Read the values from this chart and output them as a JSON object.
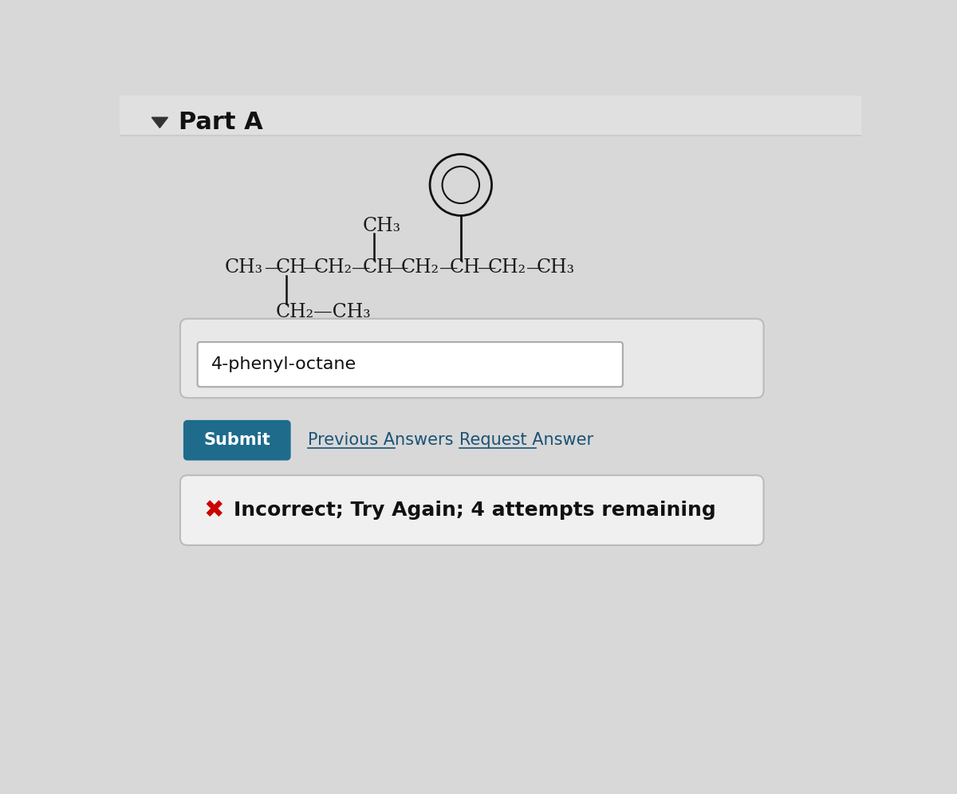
{
  "bg_color": "#d8d8d8",
  "part_a_text": "Part A",
  "part_a_fontsize": 22,
  "triangle_color": "#333333",
  "structure_color": "#1a1a1a",
  "structure_fontsize": 17,
  "answer_text": "4-phenyl-octane",
  "answer_fontsize": 16,
  "answer_box_color": "#ffffff",
  "answer_box_border": "#aaaaaa",
  "submit_bg": "#1e6b8c",
  "submit_text": "Submit",
  "submit_text_color": "#ffffff",
  "submit_fontsize": 15,
  "prev_answers_text": "Previous Answers",
  "request_answer_text": "Request Answer",
  "link_color": "#1a5276",
  "link_fontsize": 15,
  "incorrect_text": "Incorrect; Try Again; 4 attempts remaining",
  "incorrect_fontsize": 18,
  "x_color": "#cc0000",
  "separator_color": "#cccccc"
}
